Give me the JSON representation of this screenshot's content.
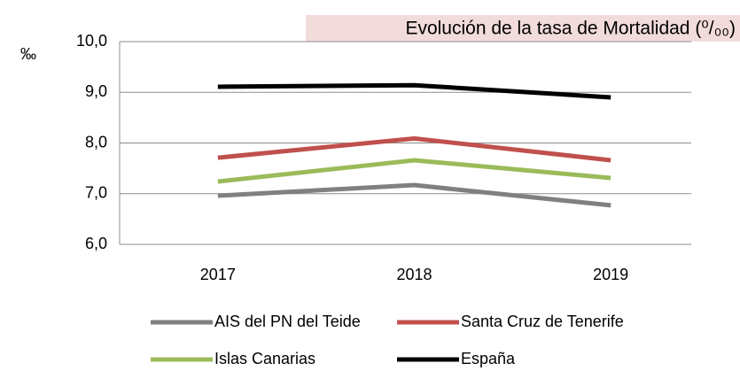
{
  "chart_data": {
    "type": "line",
    "title": "Evolución de la tasa de Mortalidad (⁰/₀₀)",
    "y_label": "‰",
    "categories": [
      "2017",
      "2018",
      "2019"
    ],
    "series": [
      {
        "name": "AIS del PN del Teide",
        "color": "#808080",
        "values": [
          6.96,
          7.17,
          6.77
        ]
      },
      {
        "name": "Santa Cruz de Tenerife",
        "color": "#c0504d",
        "values": [
          7.71,
          8.09,
          7.66
        ]
      },
      {
        "name": "Islas Canarias",
        "color": "#9bbb59",
        "values": [
          7.24,
          7.66,
          7.31
        ]
      },
      {
        "name": "España",
        "color": "#000000",
        "values": [
          9.11,
          9.14,
          8.9
        ]
      }
    ],
    "ylim": [
      6,
      10
    ],
    "yticks": [
      {
        "value": 6,
        "label": "6,0"
      },
      {
        "value": 7,
        "label": "7,0"
      },
      {
        "value": 8,
        "label": "8,0"
      },
      {
        "value": 9,
        "label": "9,0"
      },
      {
        "value": 10,
        "label": "10,0"
      }
    ],
    "grid": true
  }
}
